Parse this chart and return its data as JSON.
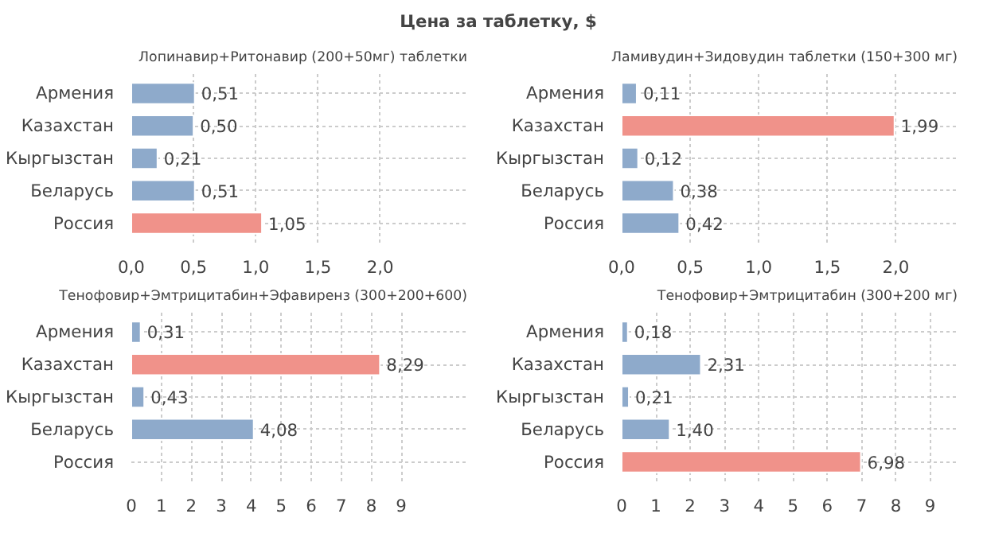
{
  "chart_data": [
    {
      "type": "bar",
      "orientation": "horizontal",
      "annotations": [
        "Цена за таблетку, $"
      ],
      "title": "Лопинавир+Ритонавир (200+50мг) таблетки",
      "categories": [
        "Армения",
        "Казахстан",
        "Кыргызстан",
        "Беларусь",
        "Россия"
      ],
      "values": [
        0.51,
        0.5,
        0.21,
        0.51,
        1.05
      ],
      "value_labels": [
        "0,51",
        "0,50",
        "0,21",
        "0,51",
        "1,05"
      ],
      "colors": [
        "#8eaacb",
        "#8eaacb",
        "#8eaacb",
        "#8eaacb",
        "#f0928a"
      ],
      "xlim": [
        0,
        2.7
      ],
      "xticks": [
        {
          "value": 0,
          "label": "0,0"
        },
        {
          "value": 0.5,
          "label": "0,5"
        },
        {
          "value": 1,
          "label": "1,0"
        },
        {
          "value": 1.5,
          "label": "1,5"
        },
        {
          "value": 2,
          "label": "2,0"
        }
      ],
      "grid": true
    },
    {
      "type": "bar",
      "orientation": "horizontal",
      "title": "Ламивудин+Зидовудин таблетки (150+300 мг)",
      "categories": [
        "Армения",
        "Казахстан",
        "Кыргызстан",
        "Беларусь",
        "Россия"
      ],
      "values": [
        0.11,
        1.99,
        0.12,
        0.38,
        0.42
      ],
      "value_labels": [
        "0,11",
        "1,99",
        "0,12",
        "0,38",
        "0,42"
      ],
      "colors": [
        "#8eaacb",
        "#f0928a",
        "#8eaacb",
        "#8eaacb",
        "#8eaacb"
      ],
      "xlim": [
        0,
        2.45
      ],
      "xticks": [
        {
          "value": 0,
          "label": "0,0"
        },
        {
          "value": 0.5,
          "label": "0,5"
        },
        {
          "value": 1,
          "label": "1,0"
        },
        {
          "value": 1.5,
          "label": "1,5"
        },
        {
          "value": 2,
          "label": "2,0"
        }
      ],
      "grid": true
    },
    {
      "type": "bar",
      "orientation": "horizontal",
      "title": "Тенофовир+Эмтрицитабин+Эфавиренз (300+200+600)",
      "categories": [
        "Армения",
        "Казахстан",
        "Кыргызстан",
        "Беларусь",
        "Россия"
      ],
      "values": [
        0.31,
        8.29,
        0.43,
        4.08,
        null
      ],
      "value_labels": [
        "0,31",
        "8,29",
        "0,43",
        "4,08",
        null
      ],
      "colors": [
        "#8eaacb",
        "#f0928a",
        "#8eaacb",
        "#8eaacb",
        "#8eaacb"
      ],
      "xlim": [
        0,
        11.2
      ],
      "xticks": [
        0,
        1,
        2,
        3,
        4,
        5,
        6,
        7,
        8,
        9
      ],
      "grid": true
    },
    {
      "type": "bar",
      "orientation": "horizontal",
      "title": "Тенофовир+Эмтрицитабин (300+200 мг)",
      "categories": [
        "Армения",
        "Казахстан",
        "Кыргызстан",
        "Беларусь",
        "Россия"
      ],
      "values": [
        0.18,
        2.31,
        0.21,
        1.4,
        6.98
      ],
      "value_labels": [
        "0,18",
        "2,31",
        "0,21",
        "1,40",
        "6,98"
      ],
      "colors": [
        "#8eaacb",
        "#8eaacb",
        "#8eaacb",
        "#8eaacb",
        "#f0928a"
      ],
      "xlim": [
        0,
        9.8
      ],
      "xticks": [
        0,
        1,
        2,
        3,
        4,
        5,
        6,
        7,
        8,
        9
      ],
      "grid": true
    }
  ]
}
